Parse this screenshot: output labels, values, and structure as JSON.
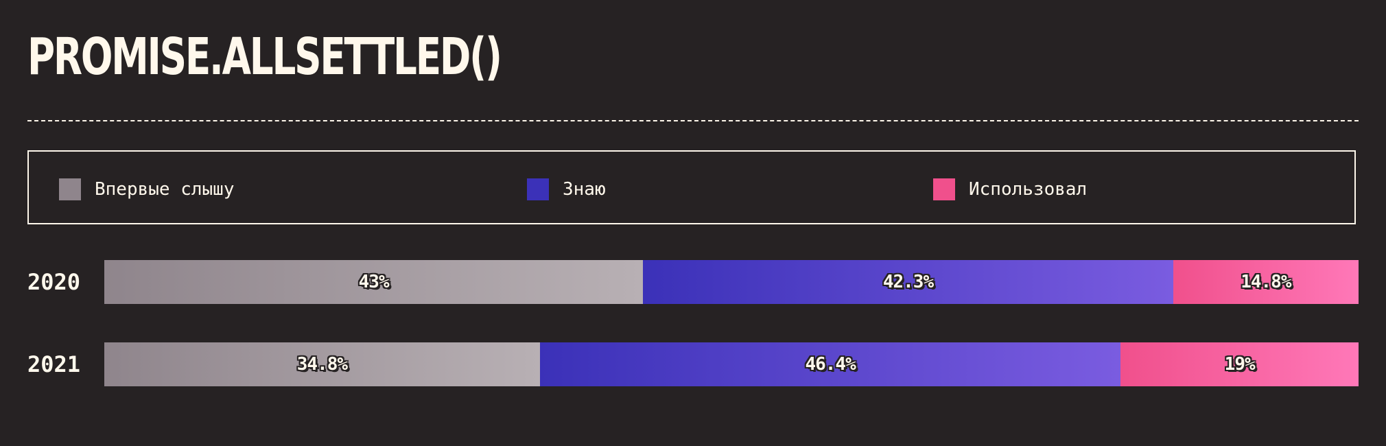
{
  "title": "PROMISE.ALLSETTLED()",
  "colors": {
    "background": "#262223",
    "text": "#fff8ec",
    "never_heard": "#8f858c",
    "know": "#3b31b8",
    "used": "#f0508c"
  },
  "legend": [
    {
      "label": "Впервые слышу",
      "color": "#8f858c"
    },
    {
      "label": "Знаю",
      "color": "#3b31b8"
    },
    {
      "label": "Использовал",
      "color": "#f0508c"
    }
  ],
  "chart_data": {
    "type": "bar",
    "orientation": "horizontal",
    "stacked": true,
    "normalized": true,
    "categories": [
      "2020",
      "2021"
    ],
    "series": [
      {
        "name": "Впервые слышу",
        "values": [
          43,
          34.8
        ],
        "labels": [
          "43%",
          "34.8%"
        ],
        "color_from": "#8f858c",
        "color_to": "#b8b0b4"
      },
      {
        "name": "Знаю",
        "values": [
          42.3,
          46.4
        ],
        "labels": [
          "42.3%",
          "46.4%"
        ],
        "color_from": "#3b31b8",
        "color_to": "#7a5ce0"
      },
      {
        "name": "Использовал",
        "values": [
          14.8,
          19
        ],
        "labels": [
          "14.8%",
          "19%"
        ],
        "color_from": "#f0508c",
        "color_to": "#ff78b8"
      }
    ],
    "title": "PROMISE.ALLSETTLED()",
    "legend_position": "top",
    "grid": false
  }
}
